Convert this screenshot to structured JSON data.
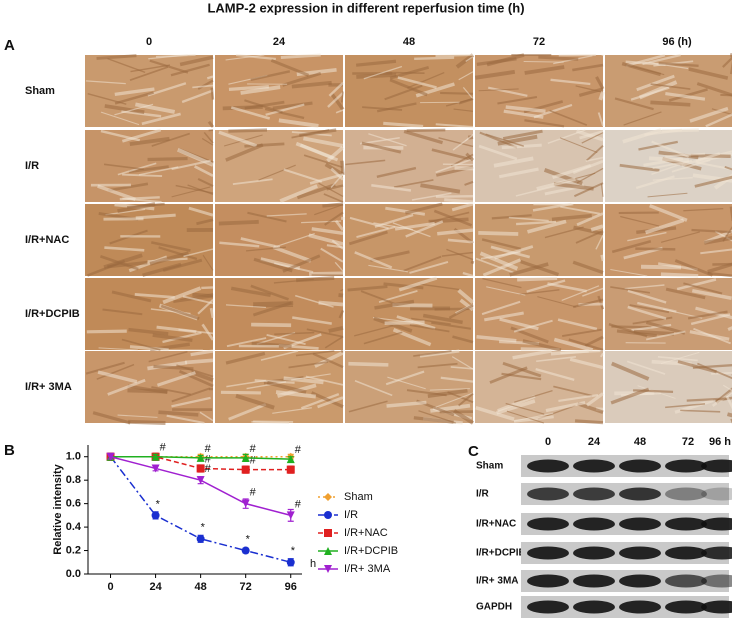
{
  "title": "LAMP-2 expression  in different reperfusion time (h)",
  "panel_a": {
    "label": "A",
    "columns": [
      "0",
      "24",
      "48",
      "72",
      "96  (h)"
    ],
    "rows": [
      "Sham",
      "I/R",
      "I/R+NAC",
      "I/R+DCPIB",
      "I/R+ 3MA"
    ]
  },
  "chart_data": {
    "type": "line",
    "panel_label": "B",
    "y_label": "Relative intensity",
    "x_label": "h",
    "x": [
      0,
      24,
      48,
      72,
      96
    ],
    "xlim": [
      -12,
      102
    ],
    "xticks": [
      0,
      24,
      48,
      72,
      96
    ],
    "ylim": [
      0,
      1.1
    ],
    "yticks": [
      {
        "value": 0,
        "label": "0.0"
      },
      {
        "value": 0.2,
        "label": "0.2"
      },
      {
        "value": 0.4,
        "label": "0.4"
      },
      {
        "value": 0.6,
        "label": "0.6"
      },
      {
        "value": 0.8,
        "label": "0.8"
      },
      {
        "value": 1,
        "label": "1.0"
      }
    ],
    "series": [
      {
        "name": "Sham",
        "color": "#f0a030",
        "marker": "diamond",
        "dash": "2,3",
        "values": [
          1,
          1,
          1,
          1,
          1
        ],
        "errors": [
          0.02,
          0.02,
          0.02,
          0.02,
          0.02
        ],
        "point_labels": [
          null,
          null,
          null,
          null,
          null
        ]
      },
      {
        "name": "I/R",
        "color": "#1a2fd0",
        "marker": "circle",
        "dash": "8,3,2,3",
        "values": [
          1,
          0.5,
          0.3,
          0.2,
          0.1
        ],
        "errors": [
          0.03,
          0.03,
          0.03,
          0.02,
          0.03
        ],
        "point_labels": [
          null,
          "*",
          "*",
          "*",
          "*"
        ]
      },
      {
        "name": "I/R+NAC",
        "color": "#e02020",
        "marker": "square",
        "dash": "5,3",
        "values": [
          1,
          1,
          0.9,
          0.89,
          0.89
        ],
        "errors": [
          0.03,
          0.03,
          0.03,
          0.03,
          0.03
        ],
        "point_labels": [
          null,
          null,
          "#",
          "#",
          null
        ]
      },
      {
        "name": "I/R+DCPIB",
        "color": "#20b020",
        "marker": "triangle",
        "dash": "",
        "values": [
          1,
          1,
          0.99,
          0.99,
          0.98
        ],
        "errors": [
          0.02,
          0.02,
          0.02,
          0.03,
          0.02
        ],
        "point_labels": [
          null,
          "#",
          "#",
          "#",
          "#"
        ]
      },
      {
        "name": "I/R+ 3MA",
        "color": "#a020d0",
        "marker": "triangle-down",
        "dash": "",
        "values": [
          1,
          0.9,
          0.8,
          0.6,
          0.5
        ],
        "errors": [
          0.02,
          0.02,
          0.03,
          0.04,
          0.05
        ],
        "point_labels": [
          null,
          null,
          "#",
          "#",
          "#"
        ]
      }
    ]
  },
  "panel_c": {
    "label": "C",
    "columns": [
      "0",
      "24",
      "48",
      "72",
      "96 h"
    ],
    "rows": [
      "Sham",
      "I/R",
      "I/R+NAC",
      "I/R+DCPIB",
      "I/R+ 3MA",
      "GAPDH"
    ]
  }
}
